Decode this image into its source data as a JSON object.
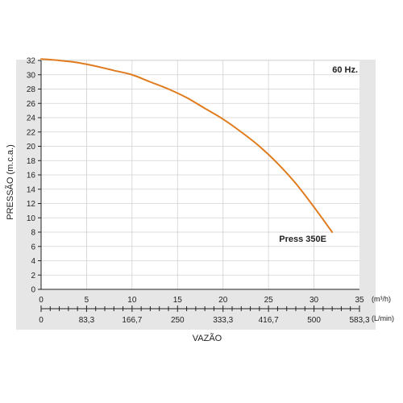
{
  "colors": {
    "curve": "#E07B1E",
    "panel": "#E6E6E6",
    "grid": "#D2D2D2",
    "axis": "#222222"
  },
  "chart_data": {
    "type": "line",
    "frequency_label": "60 Hz.",
    "ylabel": "PRESSÃO (m.c.a.)",
    "xlabel": "VAZÃO",
    "ylim": [
      0,
      32
    ],
    "y_ticks": [
      "0",
      "2",
      "4",
      "6",
      "8",
      "10",
      "12",
      "14",
      "16",
      "18",
      "20",
      "22",
      "24",
      "26",
      "28",
      "30",
      "32"
    ],
    "xlim": [
      0,
      35
    ],
    "x_ticks_m3h": [
      "0",
      "5",
      "10",
      "15",
      "20",
      "25",
      "30",
      "35"
    ],
    "x_unit_m3h": "(m³/h)",
    "x_ticks_lmin": [
      "0",
      "83,3",
      "166,7",
      "250",
      "333,3",
      "416,7",
      "500",
      "583,3"
    ],
    "x_unit_lmin": "(L/min)",
    "grid": true,
    "series": [
      {
        "name": "Press 350E",
        "x": [
          0,
          2,
          4,
          6,
          8,
          10,
          12,
          14,
          16,
          18,
          20,
          22,
          24,
          26,
          28,
          30,
          32
        ],
        "y": [
          32.2,
          32.0,
          31.7,
          31.2,
          30.6,
          30.0,
          29.0,
          28.0,
          26.8,
          25.3,
          23.8,
          22.0,
          20.0,
          17.6,
          14.8,
          11.5,
          8.0
        ]
      }
    ]
  }
}
